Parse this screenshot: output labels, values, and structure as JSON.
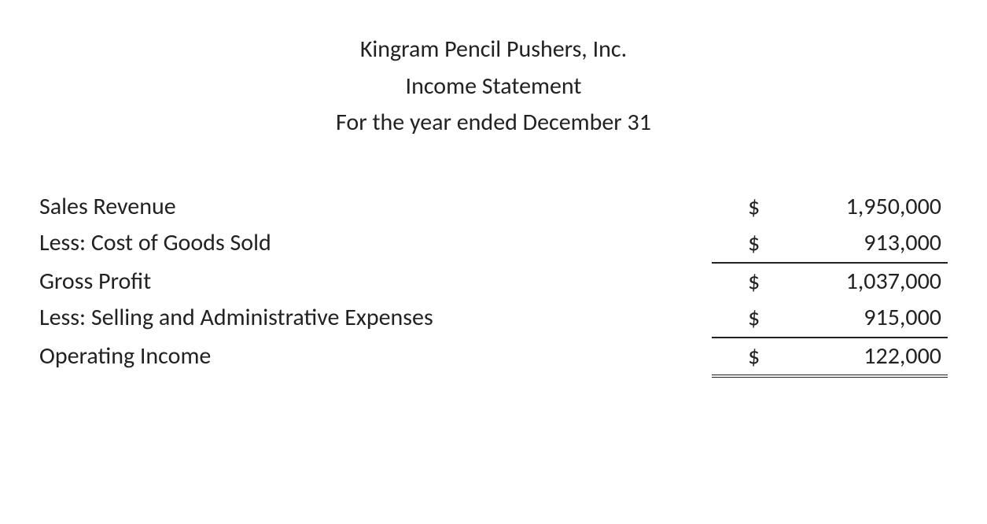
{
  "header": {
    "company": "Kingram Pencil Pushers, Inc.",
    "title": "Income Statement",
    "period": "For the year ended December 31"
  },
  "statement": {
    "currency_symbol": "$",
    "rows": [
      {
        "label": "Sales Revenue",
        "value": "1,950,000",
        "underline": "none"
      },
      {
        "label": "Less: Cost of Goods Sold",
        "value": "913,000",
        "underline": "single"
      },
      {
        "label": "Gross Profit",
        "value": "1,037,000",
        "underline": "none"
      },
      {
        "label": "Less: Selling and Administrative Expenses",
        "value": "915,000",
        "underline": "single"
      },
      {
        "label": "Operating Income",
        "value": "122,000",
        "underline": "double"
      }
    ]
  },
  "styling": {
    "font_family": "Calibri",
    "font_size_pt": 22,
    "text_color": "#222222",
    "background_color": "#ffffff",
    "border_color": "#222222"
  }
}
